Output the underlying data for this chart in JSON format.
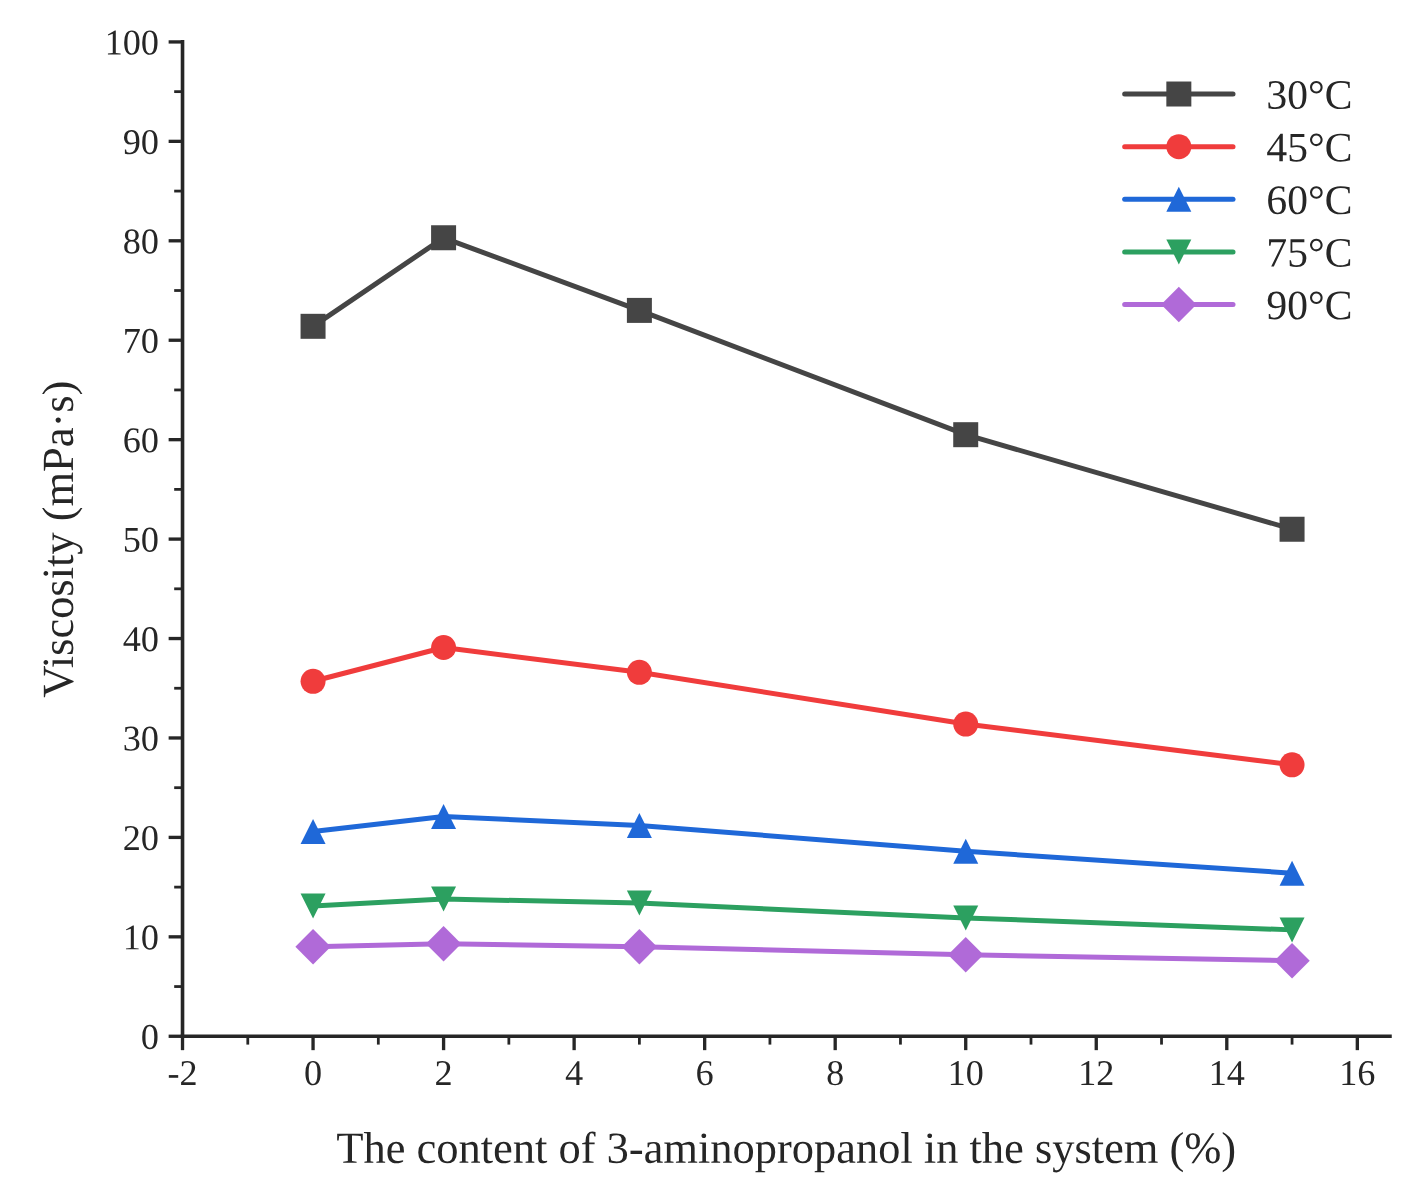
{
  "chart_data": {
    "type": "line",
    "xlabel": "The content of 3-aminopropanol in the system (%)",
    "ylabel": "Viscosity (mPa·s)",
    "x": [
      0,
      2,
      5,
      10,
      15
    ],
    "series": [
      {
        "name": "30°C",
        "color": "#454545",
        "marker": "square",
        "values": [
          71.4,
          80.3,
          73.0,
          60.5,
          51.0
        ]
      },
      {
        "name": "45°C",
        "color": "#f03c3c",
        "marker": "circle",
        "values": [
          35.7,
          39.1,
          36.6,
          31.4,
          27.3
        ]
      },
      {
        "name": "60°C",
        "color": "#1f68d8",
        "marker": "triangle",
        "values": [
          20.6,
          22.1,
          21.2,
          18.6,
          16.4
        ]
      },
      {
        "name": "75°C",
        "color": "#2ca060",
        "marker": "triangle_down",
        "values": [
          13.1,
          13.8,
          13.4,
          11.9,
          10.7
        ]
      },
      {
        "name": "90°C",
        "color": "#b06ad8",
        "marker": "diamond",
        "values": [
          9.0,
          9.3,
          9.0,
          8.2,
          7.6
        ]
      }
    ],
    "xlim": [
      -2,
      16.5
    ],
    "xticks": [
      -2,
      0,
      2,
      4,
      6,
      8,
      10,
      12,
      14,
      16
    ],
    "ylim": [
      0,
      100
    ],
    "yticks": [
      0,
      10,
      20,
      30,
      40,
      50,
      60,
      70,
      80,
      90,
      100
    ],
    "grid": false,
    "legend": "top right",
    "line_style": "solid"
  }
}
